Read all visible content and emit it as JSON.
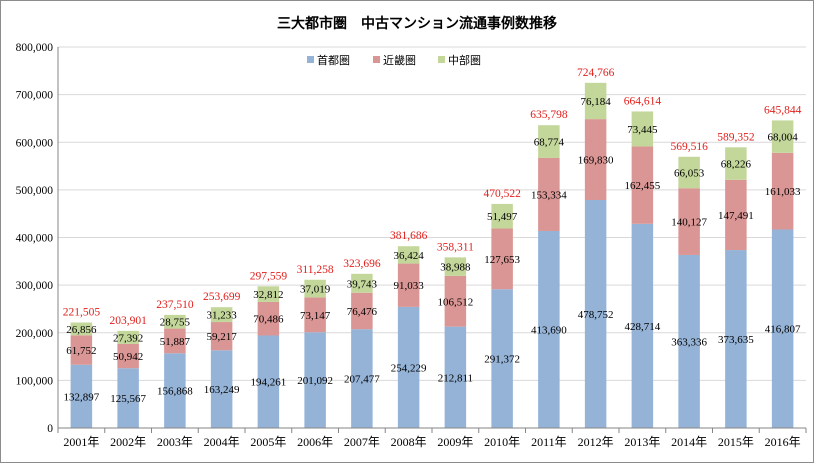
{
  "chart_data": {
    "type": "bar",
    "stacked": true,
    "title": "三大都市圏　中古マンション流通事例数推移",
    "xlabel": "",
    "ylabel": "",
    "ylim": [
      0,
      800000
    ],
    "y_ticks": [
      "0",
      "100,000",
      "200,000",
      "300,000",
      "400,000",
      "500,000",
      "600,000",
      "700,000",
      "800,000"
    ],
    "y_tick_values": [
      0,
      100000,
      200000,
      300000,
      400000,
      500000,
      600000,
      700000,
      800000
    ],
    "categories": [
      "2001年",
      "2002年",
      "2003年",
      "2004年",
      "2005年",
      "2006年",
      "2007年",
      "2008年",
      "2009年",
      "2010年",
      "2011年",
      "2012年",
      "2013年",
      "2014年",
      "2015年",
      "2016年"
    ],
    "grid": true,
    "legend_position": "top-center",
    "series": [
      {
        "name": "首都圏",
        "color": "#95b3d7",
        "values": [
          132897,
          125567,
          156868,
          163249,
          194261,
          201092,
          207477,
          254229,
          212811,
          291372,
          413690,
          478752,
          428714,
          363336,
          373635,
          416807
        ],
        "labels": [
          "132,897",
          "125,567",
          "156,868",
          "163,249",
          "194,261",
          "201,092",
          "207,477",
          "254,229",
          "212,811",
          "291,372",
          "413,690",
          "478,752",
          "428,714",
          "363,336",
          "373,635",
          "416,807"
        ]
      },
      {
        "name": "近畿圏",
        "color": "#da9694",
        "values": [
          61752,
          50942,
          51887,
          59217,
          70486,
          73147,
          76476,
          91033,
          106512,
          127653,
          153334,
          169830,
          162455,
          140127,
          147491,
          161033
        ],
        "labels": [
          "61,752",
          "50,942",
          "51,887",
          "59,217",
          "70,486",
          "73,147",
          "76,476",
          "91,033",
          "106,512",
          "127,653",
          "153,334",
          "169,830",
          "162,455",
          "140,127",
          "147,491",
          "161,033"
        ]
      },
      {
        "name": "中部圏",
        "color": "#c4d79b",
        "values": [
          26856,
          27392,
          28755,
          31233,
          32812,
          37019,
          39743,
          36424,
          38988,
          51497,
          68774,
          76184,
          73445,
          66053,
          68226,
          68004
        ],
        "labels": [
          "26,856",
          "27,392",
          "28,755",
          "31,233",
          "32,812",
          "37,019",
          "39,743",
          "36,424",
          "38,988",
          "51,497",
          "68,774",
          "76,184",
          "73,445",
          "66,053",
          "68,226",
          "68,004"
        ]
      }
    ],
    "totals": [
      221505,
      203901,
      237510,
      253699,
      297559,
      311258,
      323696,
      381686,
      358311,
      470522,
      635798,
      724766,
      664614,
      569516,
      589352,
      645844
    ],
    "total_labels": [
      "221,505",
      "203,901",
      "237,510",
      "253,699",
      "297,559",
      "311,258",
      "323,696",
      "381,686",
      "358,311",
      "470,522",
      "635,798",
      "724,766",
      "664,614",
      "569,516",
      "589,352",
      "645,844"
    ],
    "total_label_color": "#e2201d"
  }
}
